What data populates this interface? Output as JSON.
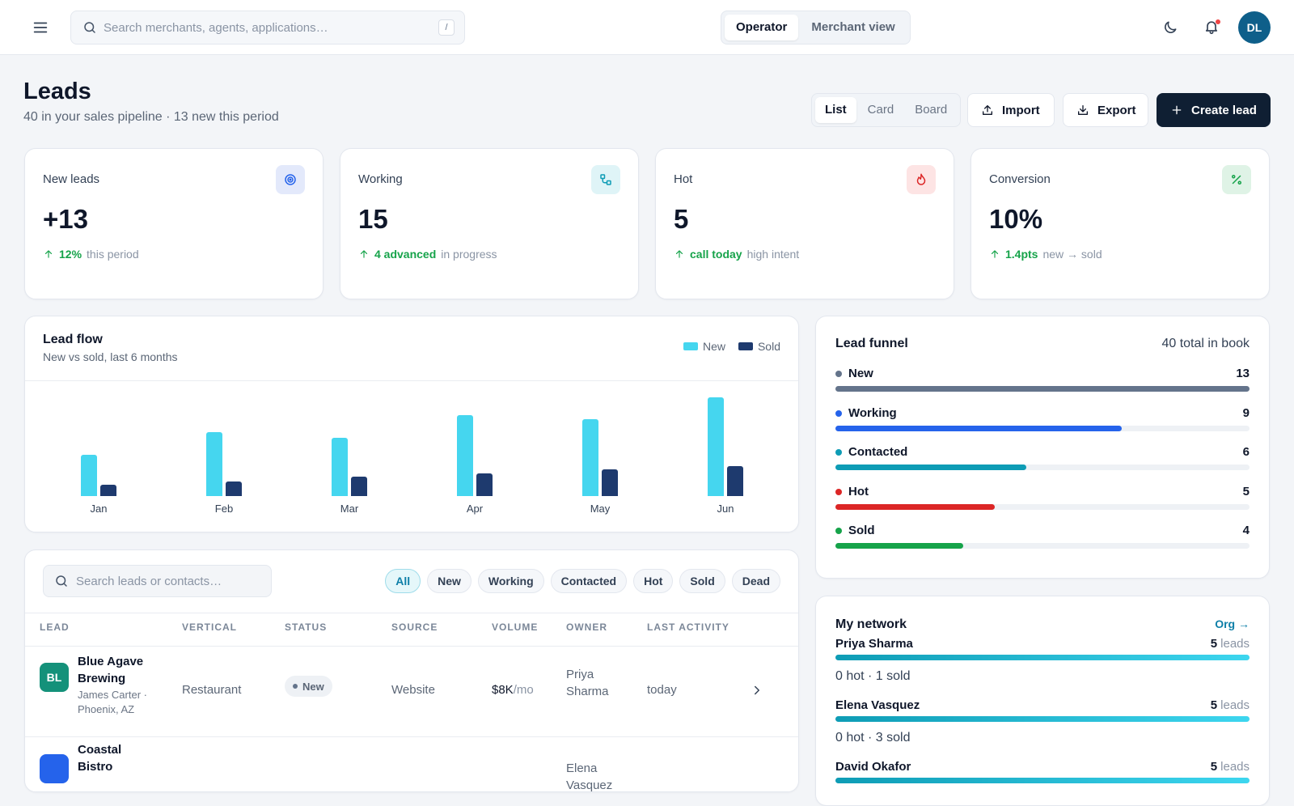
{
  "topbar": {
    "search_placeholder": "Search merchants, agents, applications…",
    "search_shortcut": "/",
    "toggle": [
      "Operator",
      "Merchant view"
    ],
    "avatar": "DL"
  },
  "header": {
    "title": "Leads",
    "subtitle": "40 in your sales pipeline · 13 new this period",
    "view_options": [
      "List",
      "Card",
      "Board"
    ],
    "actions": [
      "Import",
      "Export",
      "Create lead"
    ]
  },
  "kpis": [
    {
      "label": "New leads",
      "value": "+13",
      "delta": "12%",
      "note": "this period"
    },
    {
      "label": "Working",
      "value": "15",
      "delta": "4 advanced",
      "note": "in progress"
    },
    {
      "label": "Hot",
      "value": "5",
      "delta": "call today",
      "note": "high intent"
    },
    {
      "label": "Conversion",
      "value": "10%",
      "delta": "1.4pts",
      "note": "new → sold"
    }
  ],
  "chart_data": {
    "type": "bar",
    "title": "Lead flow",
    "subtitle": "New vs sold, last 6 months",
    "categories": [
      "Jan",
      "Feb",
      "Mar",
      "Apr",
      "May",
      "Jun"
    ],
    "series": [
      {
        "name": "New",
        "color": "#45d6ef",
        "values": [
          5,
          7.7,
          7.1,
          9.8,
          9.3,
          12
        ]
      },
      {
        "name": "Sold",
        "color": "#1e3a6e",
        "values": [
          1.4,
          1.8,
          2.4,
          2.7,
          3.2,
          3.6
        ]
      }
    ]
  },
  "funnel": {
    "title": "Lead funnel",
    "total": "40 total in book",
    "stages": [
      {
        "name": "New",
        "color": "#64748b",
        "value": 13
      },
      {
        "name": "Working",
        "color": "#2563eb",
        "value": 9
      },
      {
        "name": "Contacted",
        "color": "#0e9cb5",
        "value": 6
      },
      {
        "name": "Hot",
        "color": "#dc2626",
        "value": 5
      },
      {
        "name": "Sold",
        "color": "#16a34a",
        "value": 4
      }
    ]
  },
  "network": {
    "title": "My network",
    "link": "Org →",
    "people": [
      {
        "name": "Priya Sharma",
        "leads": 5,
        "unit": "leads",
        "summary": "0 hot · 1 sold"
      },
      {
        "name": "Elena Vasquez",
        "leads": 5,
        "unit": "leads",
        "summary": "0 hot · 3 sold"
      },
      {
        "name": "David Okafor",
        "leads": 5,
        "unit": "leads"
      }
    ]
  },
  "leads_table": {
    "search_placeholder": "Search leads or contacts…",
    "filters": [
      "All",
      "New",
      "Working",
      "Contacted",
      "Hot",
      "Sold",
      "Dead"
    ],
    "columns": [
      "LEAD",
      "VERTICAL",
      "STATUS",
      "SOURCE",
      "VOLUME",
      "OWNER",
      "LAST ACTIVITY"
    ],
    "rows": [
      {
        "initials": "BL",
        "name": "Blue Agave Brewing",
        "contact": "James Carter · Phoenix, AZ",
        "vertical": "Restaurant",
        "status": "New",
        "source": "Website",
        "volume": "$8K",
        "volume_unit": "/mo",
        "owner": "Priya Sharma",
        "last_activity": "today"
      },
      {
        "name": "Coastal Bistro",
        "owner": "Elena Vasquez"
      }
    ]
  }
}
